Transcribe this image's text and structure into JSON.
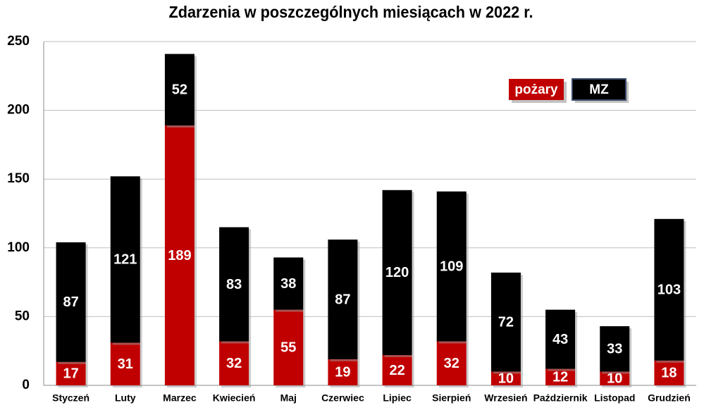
{
  "chart_data": {
    "type": "stacked_bar",
    "title": "Zdarzenia w poszczególnych miesiącach w 2022 r.",
    "categories": [
      "Styczeń",
      "Luty",
      "Marzec",
      "Kwiecień",
      "Maj",
      "Czerwiec",
      "Lipiec",
      "Sierpień",
      "Wrzesień",
      "Październik",
      "Listopad",
      "Grudzień"
    ],
    "series": [
      {
        "name": "pożary",
        "color": "#c00000",
        "values": [
          17,
          31,
          189,
          32,
          55,
          19,
          22,
          32,
          10,
          12,
          10,
          18
        ]
      },
      {
        "name": "MZ",
        "color": "#000000",
        "values": [
          87,
          121,
          52,
          83,
          38,
          87,
          120,
          109,
          72,
          43,
          33,
          103
        ]
      }
    ],
    "ylim": [
      0,
      250
    ],
    "yticks": [
      0,
      50,
      100,
      150,
      200,
      250
    ],
    "grid": true,
    "legend": "top-right"
  }
}
